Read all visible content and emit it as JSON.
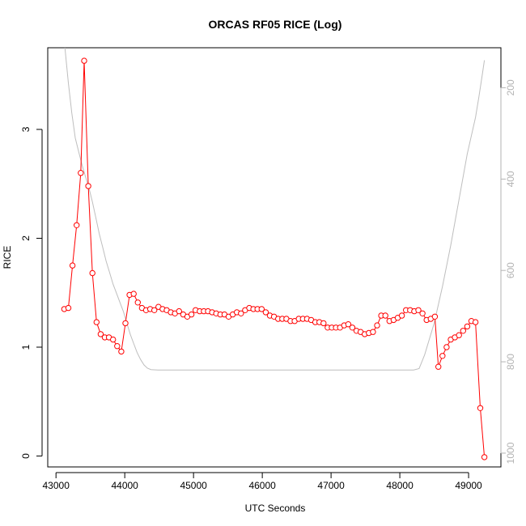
{
  "chart_data": {
    "type": "line",
    "title": "ORCAS RF05 RICE (Log)",
    "xlabel": "UTC Seconds",
    "ylabel": "RICE",
    "xlim": [
      42880,
      49470
    ],
    "ylim": [
      -0.1,
      3.75
    ],
    "x_ticks": [
      43000,
      44000,
      45000,
      46000,
      47000,
      48000,
      49000
    ],
    "x_tick_labels": [
      "43000",
      "44000",
      "45000",
      "46000",
      "47000",
      "48000",
      "49000"
    ],
    "y_ticks": [
      0,
      1,
      2,
      3
    ],
    "y_tick_labels": [
      "0",
      "1",
      "2",
      "3"
    ],
    "right_axis": {
      "ticks": [
        200,
        400,
        600,
        800,
        1000
      ],
      "tick_labels": [
        "200",
        "400",
        "600",
        "800",
        "1000"
      ],
      "lim": [
        112.5,
        1030.2
      ],
      "reversed": true,
      "color": "#b3b3b3"
    },
    "grid": false,
    "series": [
      {
        "role": "rice",
        "color": "#ff0000",
        "marker": "open-circle",
        "x": [
          43120,
          43180,
          43240,
          43300,
          43360,
          43410,
          43470,
          43530,
          43590,
          43650,
          43710,
          43770,
          43830,
          43890,
          43950,
          44010,
          44070,
          44130,
          44190,
          44250,
          44310,
          44370,
          44430,
          44490,
          44550,
          44610,
          44670,
          44730,
          44790,
          44850,
          44910,
          44970,
          45030,
          45090,
          45150,
          45210,
          45270,
          45330,
          45390,
          45450,
          45510,
          45570,
          45630,
          45690,
          45750,
          45810,
          45870,
          45930,
          45990,
          46050,
          46110,
          46170,
          46230,
          46290,
          46350,
          46410,
          46470,
          46530,
          46590,
          46650,
          46710,
          46770,
          46830,
          46890,
          46950,
          47010,
          47070,
          47130,
          47190,
          47250,
          47310,
          47370,
          47430,
          47490,
          47550,
          47610,
          47670,
          47730,
          47790,
          47850,
          47910,
          47970,
          48030,
          48090,
          48150,
          48210,
          48270,
          48330,
          48390,
          48450,
          48510,
          48560,
          48620,
          48680,
          48740,
          48800,
          48860,
          48920,
          48980,
          49040,
          49100,
          49170,
          49230
        ],
        "y": [
          1.35,
          1.36,
          1.75,
          2.12,
          2.6,
          3.63,
          2.48,
          1.68,
          1.23,
          1.12,
          1.09,
          1.09,
          1.07,
          1.01,
          0.96,
          1.22,
          1.48,
          1.49,
          1.41,
          1.36,
          1.34,
          1.35,
          1.34,
          1.37,
          1.35,
          1.34,
          1.32,
          1.31,
          1.33,
          1.3,
          1.28,
          1.3,
          1.34,
          1.33,
          1.33,
          1.33,
          1.32,
          1.31,
          1.3,
          1.3,
          1.28,
          1.3,
          1.32,
          1.31,
          1.34,
          1.36,
          1.35,
          1.35,
          1.35,
          1.32,
          1.29,
          1.28,
          1.26,
          1.26,
          1.26,
          1.24,
          1.24,
          1.26,
          1.26,
          1.26,
          1.25,
          1.23,
          1.23,
          1.22,
          1.18,
          1.18,
          1.18,
          1.18,
          1.2,
          1.21,
          1.18,
          1.15,
          1.14,
          1.12,
          1.13,
          1.14,
          1.2,
          1.29,
          1.29,
          1.24,
          1.25,
          1.27,
          1.29,
          1.34,
          1.34,
          1.33,
          1.34,
          1.31,
          1.25,
          1.26,
          1.28,
          0.82,
          0.92,
          1.0,
          1.07,
          1.09,
          1.11,
          1.15,
          1.19,
          1.24,
          1.23,
          0.44,
          -0.01
        ]
      },
      {
        "role": "pressure",
        "color": "#bebebe",
        "marker": "none",
        "axis": "right",
        "x": [
          43130,
          43180,
          43230,
          43280,
          43330,
          43380,
          43430,
          43480,
          43530,
          43580,
          43630,
          43680,
          43730,
          43780,
          43830,
          43880,
          43930,
          43980,
          44030,
          44080,
          44130,
          44180,
          44230,
          44280,
          44330,
          44380,
          44480,
          44600,
          46000,
          48000,
          48200,
          48280,
          48320,
          48360,
          48400,
          48440,
          48500,
          48560,
          48620,
          48680,
          48740,
          48800,
          48860,
          48920,
          48980,
          49040,
          49100,
          49150,
          49200,
          49230
        ],
        "y": [
          112,
          190,
          255,
          310,
          340,
          370,
          395,
          420,
          450,
          485,
          520,
          550,
          580,
          605,
          630,
          650,
          670,
          690,
          715,
          740,
          760,
          780,
          795,
          807,
          814,
          817,
          818,
          818,
          818,
          818,
          818,
          815,
          800,
          785,
          765,
          745,
          715,
          675,
          635,
          590,
          545,
          495,
          445,
          395,
          345,
          305,
          265,
          220,
          170,
          140
        ]
      }
    ]
  }
}
